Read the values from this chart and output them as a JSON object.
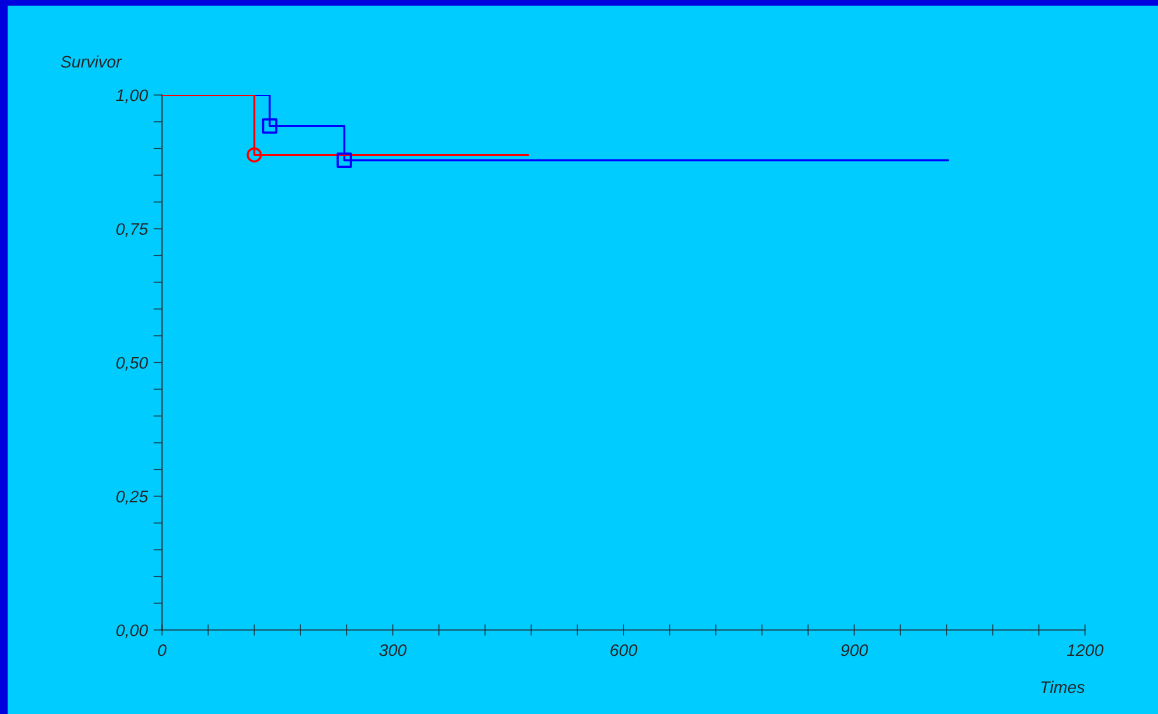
{
  "chart_data": {
    "type": "step",
    "xlabel": "Times",
    "ylabel": "Survivor",
    "series": [
      {
        "color": "#ff0000",
        "x": [
          0,
          120,
          476
        ],
        "values": [
          1.0,
          0.888,
          0.888
        ],
        "marker": "none"
      },
      {
        "color": "#0000ff",
        "x": [
          0,
          140,
          237,
          1022
        ],
        "values": [
          1.0,
          0.942,
          0.878,
          0.878
        ],
        "marker": "none"
      },
      {
        "type": "scatter",
        "color": "#ff0000",
        "x": [
          120
        ],
        "values": [
          0.888
        ],
        "marker": "circle"
      },
      {
        "type": "scatter",
        "color": "#0000ff",
        "x": [
          140,
          237
        ],
        "values": [
          0.942,
          0.878
        ],
        "marker": "square"
      }
    ],
    "xlim": [
      0,
      1200
    ],
    "ylim": [
      0,
      1
    ],
    "xticks": [
      0,
      {
        "value": 60,
        "label": null
      },
      {
        "value": 120,
        "label": null
      },
      {
        "value": 180,
        "label": null
      },
      {
        "value": 240,
        "label": null
      },
      300,
      {
        "value": 360,
        "label": null
      },
      {
        "value": 420,
        "label": null
      },
      {
        "value": 480,
        "label": null
      },
      {
        "value": 540,
        "label": null
      },
      600,
      {
        "value": 660,
        "label": null
      },
      {
        "value": 720,
        "label": null
      },
      {
        "value": 780,
        "label": null
      },
      {
        "value": 840,
        "label": null
      },
      900,
      {
        "value": 960,
        "label": null
      },
      {
        "value": 1020,
        "label": null
      },
      {
        "value": 1080,
        "label": null
      },
      {
        "value": 1140,
        "label": null
      },
      1200
    ],
    "yticks": [
      {
        "value": 0,
        "label": "0,00"
      },
      {
        "value": 0.05,
        "label": null
      },
      {
        "value": 0.1,
        "label": null
      },
      {
        "value": 0.15,
        "label": null
      },
      {
        "value": 0.2,
        "label": null
      },
      {
        "value": 0.25,
        "label": "0,25"
      },
      {
        "value": 0.3,
        "label": null
      },
      {
        "value": 0.35,
        "label": null
      },
      {
        "value": 0.4,
        "label": null
      },
      {
        "value": 0.45,
        "label": null
      },
      {
        "value": 0.5,
        "label": "0,50"
      },
      {
        "value": 0.55,
        "label": null
      },
      {
        "value": 0.6,
        "label": null
      },
      {
        "value": 0.65,
        "label": null
      },
      {
        "value": 0.7,
        "label": null
      },
      {
        "value": 0.75,
        "label": "0,75"
      },
      {
        "value": 0.8,
        "label": null
      },
      {
        "value": 0.85,
        "label": null
      },
      {
        "value": 0.9,
        "label": null
      },
      {
        "value": 0.95,
        "label": null
      },
      {
        "value": 1,
        "label": "1,00"
      }
    ],
    "grid": false,
    "legend": false
  }
}
